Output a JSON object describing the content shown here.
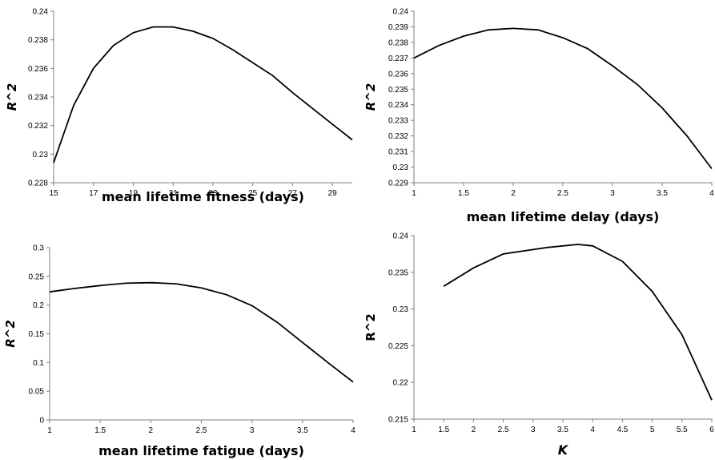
{
  "chart_data": [
    {
      "type": "line",
      "xlabel": "mean lifetime fitness (days)",
      "ylabel": "R^2",
      "xlim": [
        15,
        30
      ],
      "ylim": [
        0.228,
        0.24
      ],
      "xticks": [
        "15",
        "17",
        "19",
        "21",
        "23",
        "25",
        "27",
        "29"
      ],
      "yticks": [
        "0.228",
        "0.23",
        "0.232",
        "0.234",
        "0.236",
        "0.238",
        "0.24"
      ],
      "x": [
        15,
        16,
        17,
        18,
        19,
        20,
        21,
        22,
        23,
        24,
        25,
        26,
        27,
        28,
        29,
        30
      ],
      "y": [
        0.2294,
        0.2334,
        0.236,
        0.2376,
        0.2385,
        0.2389,
        0.2389,
        0.2386,
        0.2381,
        0.2373,
        0.2364,
        0.2355,
        0.2343,
        0.2332,
        0.2321,
        0.231
      ]
    },
    {
      "type": "line",
      "xlabel": "mean lifetime delay (days)",
      "ylabel": "R^2",
      "xlim": [
        1,
        4
      ],
      "ylim": [
        0.229,
        0.24
      ],
      "xticks": [
        "1",
        "1.5",
        "2",
        "2.5",
        "3",
        "3.5",
        "4"
      ],
      "yticks": [
        "0.229",
        "0.23",
        "0.231",
        "0.232",
        "0.233",
        "0.234",
        "0.235",
        "0.236",
        "0.237",
        "0.238",
        "0.239",
        "0.24"
      ],
      "x": [
        1,
        1.25,
        1.5,
        1.75,
        2,
        2.25,
        2.5,
        2.75,
        3,
        3.25,
        3.5,
        3.75,
        4
      ],
      "y": [
        0.237,
        0.2378,
        0.2384,
        0.2388,
        0.2389,
        0.2388,
        0.2383,
        0.2376,
        0.2365,
        0.2353,
        0.2338,
        0.232,
        0.2299
      ]
    },
    {
      "type": "line",
      "xlabel": "mean lifetime fatigue (days)",
      "ylabel": "R^2",
      "xlim": [
        1,
        4
      ],
      "ylim": [
        0,
        0.3
      ],
      "xticks": [
        "1",
        "1.5",
        "2",
        "2.5",
        "3",
        "3.5",
        "4"
      ],
      "yticks": [
        "0",
        "0.05",
        "0.1",
        "0.15",
        "0.2",
        "0.25",
        "0.3"
      ],
      "x": [
        1,
        1.25,
        1.5,
        1.75,
        2,
        2.25,
        2.5,
        2.75,
        3,
        3.25,
        3.5,
        3.75,
        4
      ],
      "y": [
        0.223,
        0.229,
        0.234,
        0.238,
        0.239,
        0.237,
        0.23,
        0.218,
        0.199,
        0.17,
        0.135,
        0.1,
        0.066
      ]
    },
    {
      "type": "line",
      "xlabel": "K",
      "ylabel": "R^2",
      "xlim": [
        1,
        6
      ],
      "ylim": [
        0.215,
        0.24
      ],
      "xticks": [
        "1",
        "1.5",
        "2",
        "2.5",
        "3",
        "3.5",
        "4",
        "4.5",
        "5",
        "5.5",
        "6"
      ],
      "yticks": [
        "0.215",
        "0.22",
        "0.225",
        "0.23",
        "0.235",
        "0.24"
      ],
      "x": [
        1.5,
        2,
        2.5,
        3,
        3.25,
        3.75,
        4,
        4.5,
        5,
        5.5,
        6
      ],
      "y": [
        0.2331,
        0.2356,
        0.2375,
        0.2381,
        0.2384,
        0.2388,
        0.2386,
        0.2365,
        0.2324,
        0.2265,
        0.2176
      ]
    }
  ]
}
